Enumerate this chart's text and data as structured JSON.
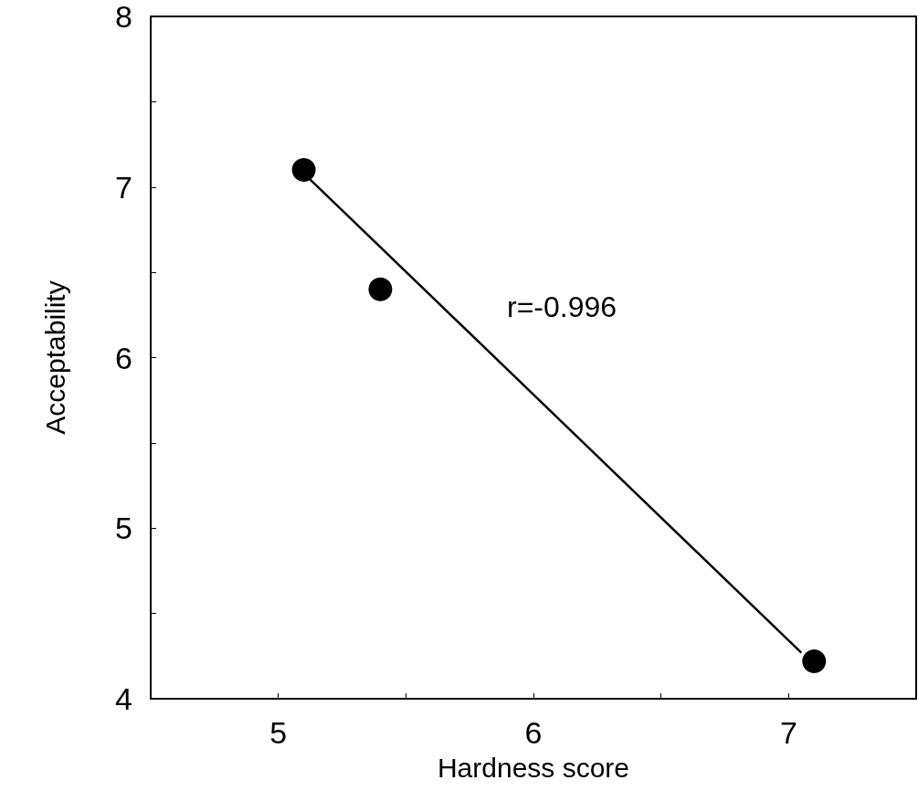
{
  "chart_data": {
    "type": "scatter",
    "xlabel": "Hardness score",
    "ylabel": "Acceptability",
    "x": [
      5.1,
      5.4,
      7.1
    ],
    "series": [
      {
        "color": "#000000",
        "values": [
          7.1,
          6.4,
          4.22
        ],
        "marker": "circle"
      },
      {
        "type": "line",
        "color": "#000000",
        "x": [
          5.1,
          7.05
        ],
        "values": [
          7.08,
          4.27
        ],
        "marker": "none",
        "line_style": "solid"
      }
    ],
    "xlim": [
      4.5,
      7.5
    ],
    "ylim": [
      4,
      8
    ],
    "xticks": [
      5,
      {
        "value": 5.5,
        "label": null
      },
      6,
      {
        "value": 6.5,
        "label": null
      },
      7
    ],
    "yticks": [
      4,
      {
        "value": 4.5,
        "label": null
      },
      5,
      {
        "value": 5.5,
        "label": null
      },
      6,
      {
        "value": 6.5,
        "label": null
      },
      7,
      {
        "value": 7.5,
        "label": null
      },
      8
    ],
    "annotations": [
      "r=-0.996"
    ]
  }
}
